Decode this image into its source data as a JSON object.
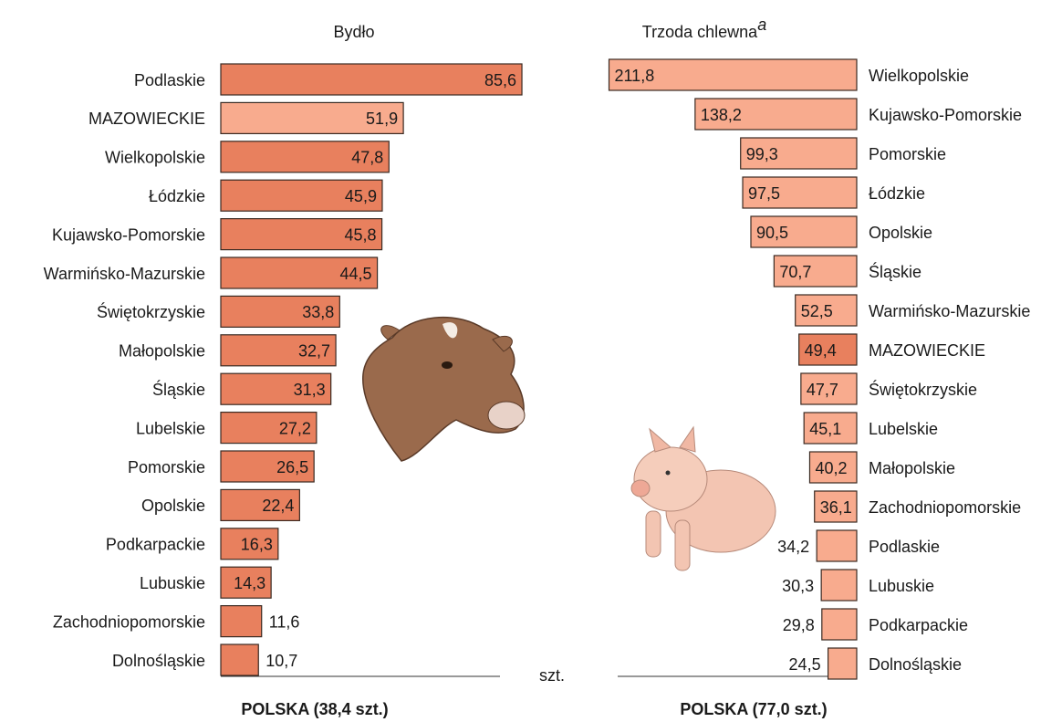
{
  "chart_data": [
    {
      "type": "bar",
      "direction": "right",
      "title": "Bydło",
      "footer": "POLSKA (38,4 szt.)",
      "unit": "szt.",
      "categories": [
        "Podlaskie",
        "MAZOWIECKIE",
        "Wielkopolskie",
        "Łódzkie",
        "Kujawsko-Pomorskie",
        "Warmińsko-Mazurskie",
        "Świętokrzyskie",
        "Małopolskie",
        "Śląskie",
        "Lubelskie",
        "Pomorskie",
        "Opolskie",
        "Podkarpackie",
        "Lubuskie",
        "Zachodniopomorskie",
        "Dolnośląskie"
      ],
      "values": [
        85.6,
        51.9,
        47.8,
        45.9,
        45.8,
        44.5,
        33.8,
        32.7,
        31.3,
        27.2,
        26.5,
        22.4,
        16.3,
        14.3,
        11.6,
        10.7
      ],
      "value_labels": [
        "85,6",
        "51,9",
        "47,8",
        "45,9",
        "45,8",
        "44,5",
        "33,8",
        "32,7",
        "31,3",
        "27,2",
        "26,5",
        "22,4",
        "16,3",
        "14,3",
        "11,6",
        "10,7"
      ],
      "colors": [
        "#e8805e",
        "#f8ab8e",
        "#e8805e",
        "#e8805e",
        "#e8805e",
        "#e8805e",
        "#e8805e",
        "#e8805e",
        "#e8805e",
        "#e8805e",
        "#e8805e",
        "#e8805e",
        "#e8805e",
        "#e8805e",
        "#e8805e",
        "#e8805e"
      ],
      "xlim": [
        0,
        90
      ]
    },
    {
      "type": "bar",
      "direction": "left",
      "title": "Trzoda chlewna",
      "title_note": "a",
      "footer": "POLSKA (77,0 szt.)",
      "categories": [
        "Wielkopolskie",
        "Kujawsko-Pomorskie",
        "Pomorskie",
        "Łódzkie",
        "Opolskie",
        "Śląskie",
        "Warmińsko-Mazurskie",
        "MAZOWIECKIE",
        "Świętokrzyskie",
        "Lubelskie",
        "Małopolskie",
        "Zachodniopomorskie",
        "Podlaskie",
        "Lubuskie",
        "Podkarpackie",
        "Dolnośląskie"
      ],
      "values": [
        211.8,
        138.2,
        99.3,
        97.5,
        90.5,
        70.7,
        52.5,
        49.4,
        47.7,
        45.1,
        40.2,
        36.1,
        34.2,
        30.3,
        29.8,
        24.5
      ],
      "value_labels": [
        "211,8",
        "138,2",
        "99,3",
        "97,5",
        "90,5",
        "70,7",
        "52,5",
        "49,4",
        "47,7",
        "45,1",
        "40,2",
        "36,1",
        "34,2",
        "30,3",
        "29,8",
        "24,5"
      ],
      "colors": [
        "#f8ab8e",
        "#f8ab8e",
        "#f8ab8e",
        "#f8ab8e",
        "#f8ab8e",
        "#f8ab8e",
        "#f8ab8e",
        "#e8805e",
        "#f8ab8e",
        "#f8ab8e",
        "#f8ab8e",
        "#f8ab8e",
        "#f8ab8e",
        "#f8ab8e",
        "#f8ab8e",
        "#f8ab8e"
      ],
      "xlim": [
        0,
        220
      ]
    }
  ]
}
